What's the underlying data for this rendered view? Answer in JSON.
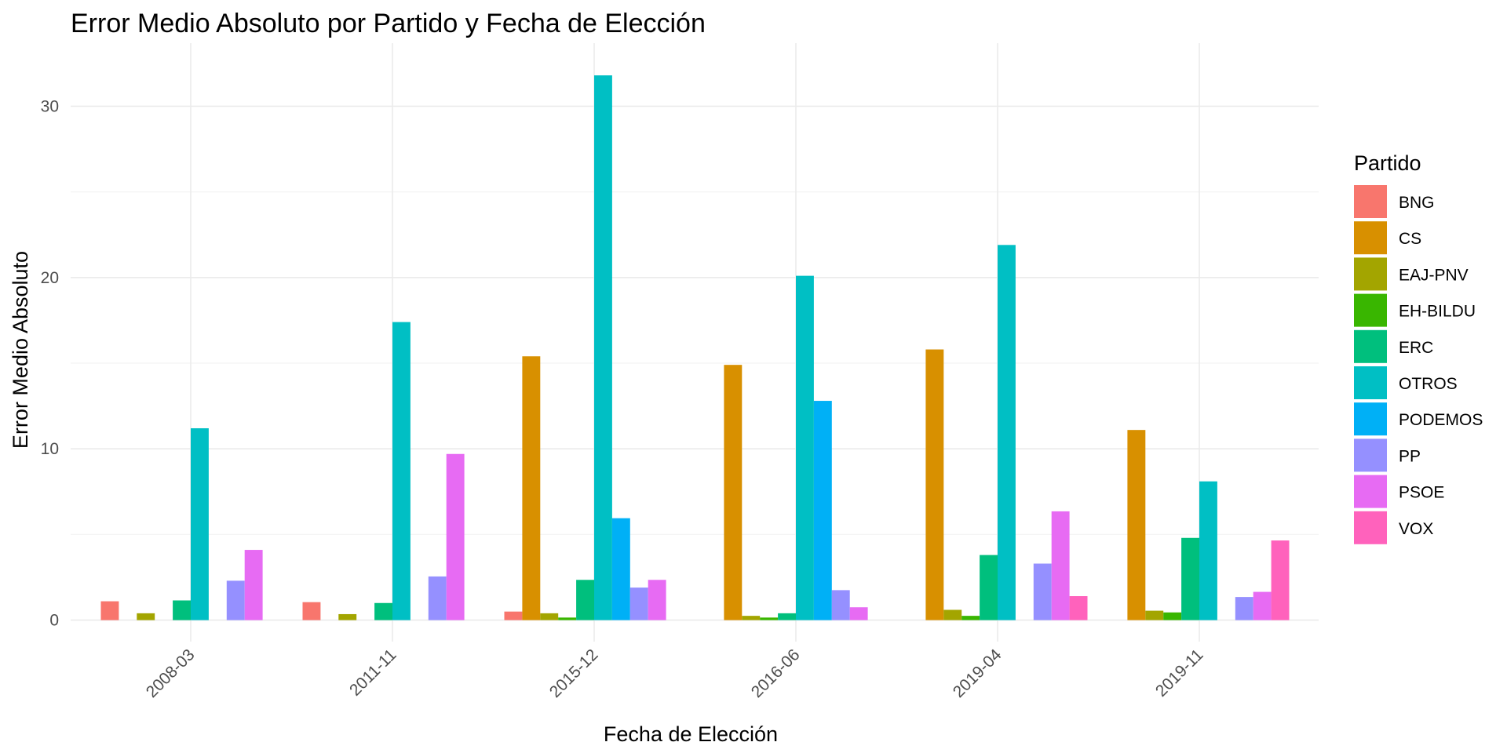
{
  "chart_data": {
    "type": "bar",
    "title": "Error Medio Absoluto por Partido y Fecha de Elección",
    "xlabel": "Fecha de Elección",
    "ylabel": "Error Medio Absoluto",
    "categories": [
      "2008-03",
      "2011-11",
      "2015-12",
      "2016-06",
      "2019-04",
      "2019-11"
    ],
    "ylim": [
      0,
      32
    ],
    "yticks": [
      0,
      10,
      20,
      30
    ],
    "grid": true,
    "legend_title": "Partido",
    "legend_position": "right",
    "series": [
      {
        "name": "BNG",
        "color": "#F8766D",
        "values": [
          1.1,
          1.05,
          0.5,
          null,
          null,
          null
        ]
      },
      {
        "name": "CS",
        "color": "#D89000",
        "values": [
          null,
          null,
          15.4,
          14.9,
          15.8,
          11.1
        ]
      },
      {
        "name": "EAJ-PNV",
        "color": "#A3A500",
        "values": [
          0.4,
          0.35,
          0.4,
          0.25,
          0.6,
          0.55
        ]
      },
      {
        "name": "EH-BILDU",
        "color": "#39B600",
        "values": [
          null,
          null,
          0.15,
          0.15,
          0.25,
          0.45
        ]
      },
      {
        "name": "ERC",
        "color": "#00BF7D",
        "values": [
          1.15,
          1.0,
          2.35,
          0.4,
          3.8,
          4.8
        ]
      },
      {
        "name": "OTROS",
        "color": "#00BFC4",
        "values": [
          11.2,
          17.4,
          31.8,
          20.1,
          21.9,
          8.1
        ]
      },
      {
        "name": "PODEMOS",
        "color": "#00B0F6",
        "values": [
          null,
          null,
          5.95,
          12.8,
          null,
          null
        ]
      },
      {
        "name": "PP",
        "color": "#9590FF",
        "values": [
          2.3,
          2.55,
          1.9,
          1.75,
          3.3,
          1.35
        ]
      },
      {
        "name": "PSOE",
        "color": "#E76BF3",
        "values": [
          4.1,
          9.7,
          2.35,
          0.75,
          6.35,
          1.65
        ]
      },
      {
        "name": "VOX",
        "color": "#FF62BC",
        "values": [
          null,
          null,
          null,
          null,
          1.4,
          4.65
        ]
      }
    ]
  }
}
